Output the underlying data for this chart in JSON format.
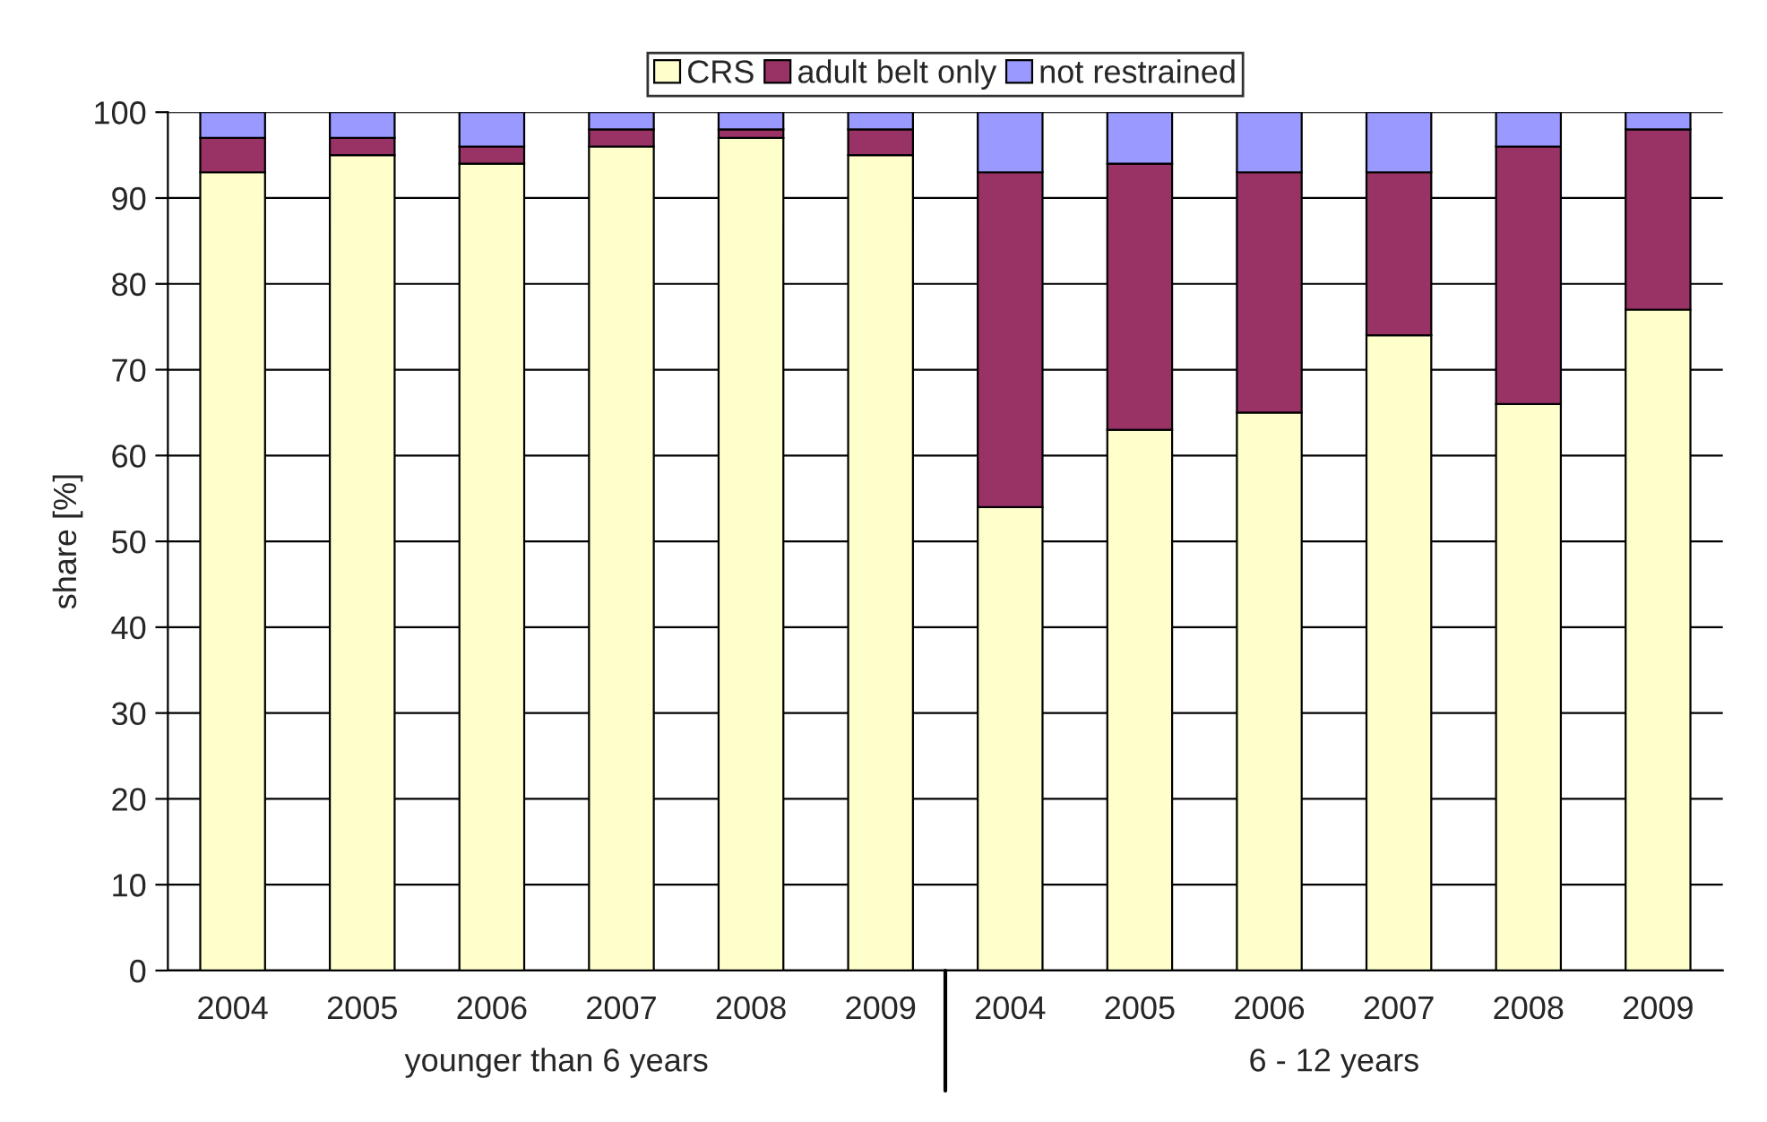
{
  "chart_data": {
    "type": "bar",
    "stacked": true,
    "ylabel": "share [%]",
    "categories": [
      "2004",
      "2005",
      "2006",
      "2007",
      "2008",
      "2009",
      "2004",
      "2005",
      "2006",
      "2007",
      "2008",
      "2009"
    ],
    "series": [
      {
        "name": "CRS",
        "color": "#ffffcc",
        "values": [
          93,
          95,
          94,
          96,
          97,
          95,
          54,
          63,
          65,
          74,
          66,
          77
        ]
      },
      {
        "name": "adult belt only",
        "color": "#993366",
        "values": [
          4,
          2,
          2,
          2,
          1,
          3,
          39,
          31,
          28,
          19,
          30,
          21
        ]
      },
      {
        "name": "not restrained",
        "color": "#9999ff",
        "values": [
          3,
          3,
          4,
          2,
          2,
          2,
          7,
          6,
          7,
          7,
          4,
          2
        ]
      }
    ],
    "ylim": [
      0,
      100
    ],
    "yticks": [
      0,
      10,
      20,
      30,
      40,
      50,
      60,
      70,
      80,
      90,
      100
    ],
    "grid": "y",
    "legend": "top",
    "annotations": [
      "younger than 6 years",
      "6 - 12 years"
    ]
  }
}
